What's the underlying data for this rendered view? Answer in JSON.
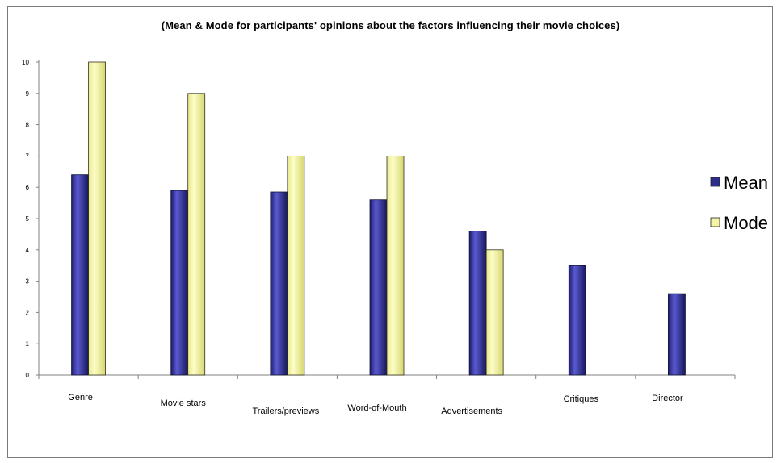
{
  "chart_data": {
    "type": "bar",
    "title": "(Mean & Mode for participants' opinions about the factors influencing their movie choices)",
    "xlabel": "",
    "ylabel": "",
    "categories": [
      "Genre",
      "Movie stars",
      "Trailers/previews",
      "Word-of-Mouth",
      "Advertisements",
      "Critiques",
      "Director"
    ],
    "series": [
      {
        "name": "Mean",
        "values": [
          6.4,
          5.9,
          5.85,
          5.6,
          4.6,
          3.5,
          2.6
        ],
        "color": "#2d2d8c"
      },
      {
        "name": "Mode",
        "values": [
          10,
          9,
          7,
          7,
          4,
          null,
          null
        ],
        "color": "#f4f4a6"
      }
    ],
    "ylim": [
      0,
      10
    ],
    "yticks": [
      0,
      1,
      2,
      3,
      4,
      5,
      6,
      7,
      8,
      9,
      10
    ],
    "grid": false,
    "legend_position": "right"
  }
}
